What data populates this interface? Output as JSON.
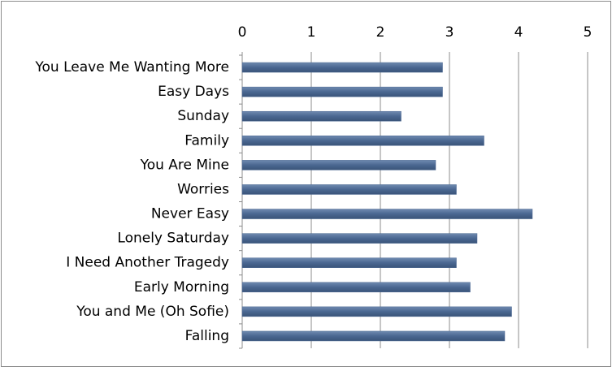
{
  "chart_data": {
    "type": "bar",
    "orientation": "horizontal",
    "categories": [
      "You Leave Me Wanting More",
      "Easy Days",
      "Sunday",
      "Family",
      "You Are Mine",
      "Worries",
      "Never Easy",
      "Lonely Saturday",
      "I Need Another Tragedy",
      "Early Morning",
      "You and Me (Oh Sofie)",
      "Falling"
    ],
    "values": [
      2.9,
      2.9,
      2.3,
      3.5,
      2.8,
      3.1,
      4.2,
      3.4,
      3.1,
      3.3,
      3.9,
      3.8
    ],
    "color": "#4a6791",
    "xlim": [
      0,
      5
    ],
    "xticks": [
      0,
      1,
      2,
      3,
      4,
      5
    ],
    "grid": true
  }
}
